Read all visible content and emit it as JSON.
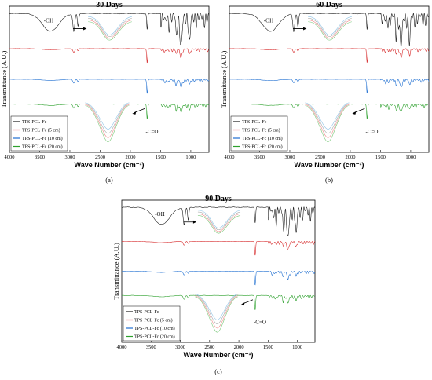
{
  "chart_data": [
    {
      "type": "line",
      "title": "30 Days",
      "caption": "(a)",
      "xlabel": "Wave Number (cm⁻¹)",
      "ylabel": "Transmittance (A.U.)",
      "xlim": [
        4000,
        700
      ],
      "x_reversed": true,
      "xticks": [
        4000,
        3500,
        3000,
        2500,
        2000,
        1500,
        1000
      ],
      "grid": false,
      "legend_position": "bottom-left",
      "annotations": [
        "-OH",
        "-C=O"
      ],
      "series": [
        {
          "name": "TPS-PCL-Fc",
          "color": "#1a1a1a"
        },
        {
          "name": "TPS-PCL-Fc (5 cm)",
          "color": "#d62728"
        },
        {
          "name": "TPS-PCL-Fc (10 cm)",
          "color": "#1f6fd1"
        },
        {
          "name": "TPS-PCL-Fc (20 cm)",
          "color": "#2ca02c"
        }
      ]
    },
    {
      "type": "line",
      "title": "60 Days",
      "caption": "(b)",
      "xlabel": "Wave Number (cm⁻¹)",
      "ylabel": "Transmittance (A.U.)",
      "xlim": [
        4000,
        700
      ],
      "x_reversed": true,
      "xticks": [
        4000,
        3500,
        3000,
        2500,
        2000,
        1500,
        1000
      ],
      "grid": false,
      "legend_position": "bottom-left",
      "annotations": [
        "-OH",
        "-C=O"
      ],
      "series": [
        {
          "name": "TPS-PCL-Fc",
          "color": "#1a1a1a"
        },
        {
          "name": "TPS-PCL-Fc (5 cm)",
          "color": "#d62728"
        },
        {
          "name": "TPS-PCL-Fc (10 cm)",
          "color": "#1f6fd1"
        },
        {
          "name": "TPS-PCL-Fc (20 cm)",
          "color": "#2ca02c"
        }
      ]
    },
    {
      "type": "line",
      "title": "90 Days",
      "caption": "(c)",
      "xlabel": "Wave Number (cm⁻¹)",
      "ylabel": "Transmittance (A.U.)",
      "xlim": [
        4000,
        700
      ],
      "x_reversed": true,
      "xticks": [
        4000,
        3500,
        3000,
        2500,
        2000,
        1500,
        1000
      ],
      "grid": false,
      "legend_position": "bottom-left",
      "annotations": [
        "-OH",
        "-C=O"
      ],
      "series": [
        {
          "name": "TPS-PCL-Fc",
          "color": "#1a1a1a"
        },
        {
          "name": "TPS-PCL-Fc (5 cm)",
          "color": "#d62728"
        },
        {
          "name": "TPS-PCL-Fc (10 cm)",
          "color": "#1f6fd1"
        },
        {
          "name": "TPS-PCL-Fc (20 cm)",
          "color": "#2ca02c"
        }
      ]
    }
  ]
}
